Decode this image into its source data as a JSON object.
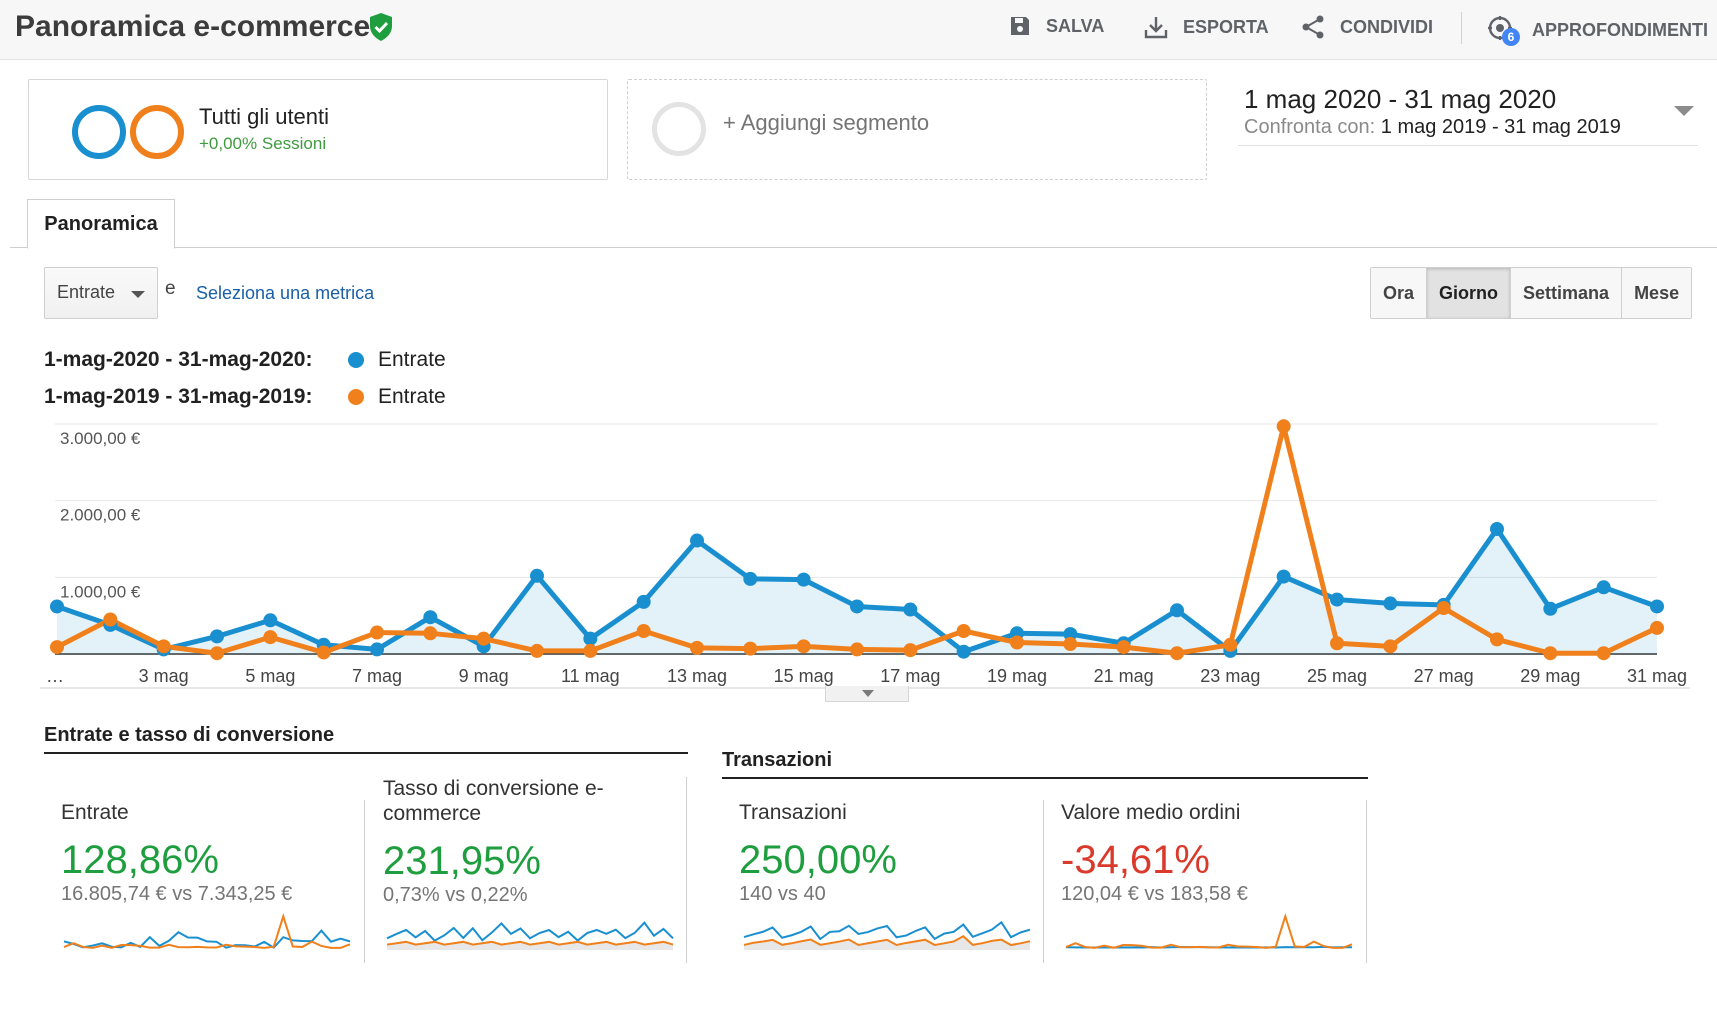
{
  "header": {
    "title": "Panoramica e-commerce",
    "actions": {
      "save": "SALVA",
      "export": "ESPORTA",
      "share": "CONDIVIDI",
      "insights": "APPROFONDIMENTI",
      "insights_count": "6"
    }
  },
  "segments": {
    "active": {
      "name": "Tutti gli utenti",
      "sub": "+0,00% Sessioni"
    },
    "add_label": "+ Aggiungi segmento"
  },
  "daterange": {
    "main": "1 mag 2020 - 31 mag 2020",
    "compare_label": "Confronta con:",
    "compare_range": "1 mag 2019 - 31 mag 2019"
  },
  "tabs": [
    {
      "label": "Panoramica"
    }
  ],
  "controls": {
    "metric": "Entrate",
    "and_text": "e",
    "select_metric": "Seleziona una metrica",
    "granularity": [
      "Ora",
      "Giorno",
      "Settimana",
      "Mese"
    ],
    "granularity_active": "Giorno"
  },
  "legend": [
    {
      "range": "1-mag-2020 - 31-mag-2020:",
      "name": "Entrate",
      "color": "#1a8fd0"
    },
    {
      "range": "1-mag-2019 - 31-mag-2019:",
      "name": "Entrate",
      "color": "#f0801b"
    }
  ],
  "chart_data": {
    "type": "line",
    "x": [
      "1 mag",
      "2 mag",
      "3 mag",
      "4 mag",
      "5 mag",
      "6 mag",
      "7 mag",
      "8 mag",
      "9 mag",
      "10 mag",
      "11 mag",
      "12 mag",
      "13 mag",
      "14 mag",
      "15 mag",
      "16 mag",
      "17 mag",
      "18 mag",
      "19 mag",
      "20 mag",
      "21 mag",
      "22 mag",
      "23 mag",
      "24 mag",
      "25 mag",
      "26 mag",
      "27 mag",
      "28 mag",
      "29 mag",
      "30 mag",
      "31 mag"
    ],
    "x_tick_labels": [
      "…",
      "3 mag",
      "5 mag",
      "7 mag",
      "9 mag",
      "11 mag",
      "13 mag",
      "15 mag",
      "17 mag",
      "19 mag",
      "21 mag",
      "23 mag",
      "25 mag",
      "27 mag",
      "29 mag",
      "31 mag"
    ],
    "y_tick_labels": [
      "3.000,00 €",
      "2.000,00 €",
      "1.000,00 €"
    ],
    "y_ticks": [
      3000,
      2000,
      1000
    ],
    "ylim": [
      0,
      3000
    ],
    "grid": true,
    "series": [
      {
        "name": "Entrate",
        "color": "#1a8fd0",
        "area": true,
        "values": [
          620,
          380,
          60,
          230,
          440,
          120,
          60,
          480,
          100,
          1020,
          200,
          680,
          1480,
          980,
          970,
          620,
          580,
          30,
          270,
          260,
          140,
          570,
          40,
          1010,
          710,
          660,
          640,
          1630,
          590,
          870,
          620
        ]
      },
      {
        "name": "Entrate",
        "color": "#f0801b",
        "area": false,
        "values": [
          90,
          450,
          100,
          10,
          220,
          20,
          280,
          270,
          200,
          40,
          40,
          300,
          80,
          70,
          100,
          60,
          50,
          300,
          150,
          130,
          90,
          10,
          120,
          2970,
          140,
          100,
          600,
          190,
          10,
          10,
          340
        ]
      }
    ]
  },
  "summary": {
    "left_title": "Entrate e tasso di conversione",
    "right_title": "Transazioni",
    "cards": [
      {
        "name": "Entrate",
        "pct": "128,86%",
        "trend": "positive",
        "cmp": "16.805,74 € vs 7.343,25 €"
      },
      {
        "name": "Tasso di conversione e-commerce",
        "pct": "231,95%",
        "trend": "positive",
        "cmp": "0,73% vs 0,22%"
      },
      {
        "name": "Transazioni",
        "pct": "250,00%",
        "trend": "positive",
        "cmp": "140 vs 40"
      },
      {
        "name": "Valore medio ordini",
        "pct": "-34,61%",
        "trend": "negative",
        "cmp": "120,04 € vs 183,58 €"
      }
    ]
  }
}
